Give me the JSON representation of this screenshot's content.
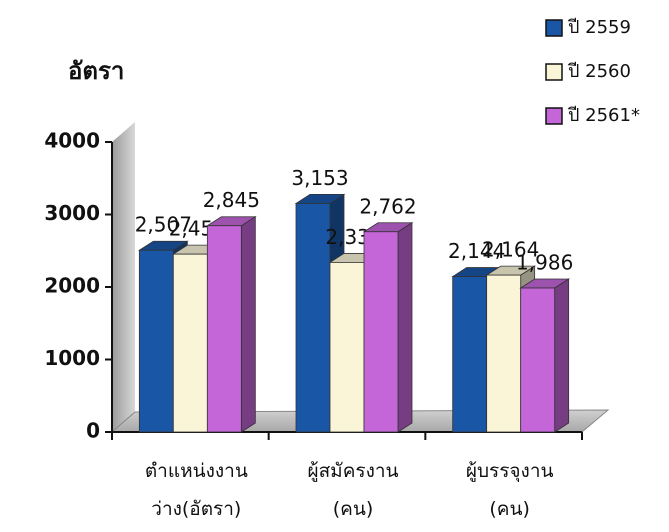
{
  "chart_data": {
    "type": "bar3d",
    "y_axis_title": "อัตรา",
    "categories": [
      "ตำแหน่งงาน\nว่าง(อัตรา)",
      "ผู้สมัครงาน\n(คน)",
      "ผู้บรรจุงาน\n(คน)"
    ],
    "series": [
      {
        "name": "ปี 2559",
        "color": "#1a56a6",
        "values": [
          2507,
          3153,
          2144
        ],
        "value_labels": [
          "2,507",
          "3,153",
          "2,144"
        ]
      },
      {
        "name": "ปี 2560",
        "color": "#fbf5d8",
        "values": [
          2453,
          2339,
          2164
        ],
        "value_labels": [
          "2,453",
          "2,339",
          "2,164"
        ]
      },
      {
        "name": "ปี 2561*",
        "color": "#c466d8",
        "values": [
          2845,
          2762,
          1986
        ],
        "value_labels": [
          "2,845",
          "2,762",
          "1,986"
        ]
      }
    ],
    "ylim": [
      0,
      4000
    ],
    "yticks": [
      0,
      1000,
      2000,
      3000,
      4000
    ],
    "legend": "top-right"
  }
}
